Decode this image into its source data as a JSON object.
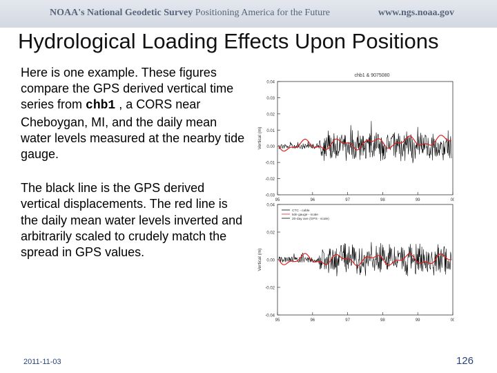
{
  "header": {
    "agency": "NOAA's National Geodetic Survey",
    "tagline": "Positioning America for the Future",
    "url": "www.ngs.noaa.gov"
  },
  "title": "Hydrological Loading Effects Upon Positions",
  "paragraph1": {
    "before": "Here is one example. These figures compare the GPS derived vertical time series from",
    "code": "chb1",
    "after": ", a CORS near Cheboygan, MI, and the daily mean water levels measured at the nearby tide gauge."
  },
  "paragraph2": "The black line is the GPS derived vertical displacements. The red line is the daily mean water levels inverted and arbitrarily scaled to crudely match the spread in GPS values.",
  "footer": {
    "date": "2011-11-03",
    "page": "126"
  },
  "chart_data": [
    {
      "type": "line",
      "title": "chb1 & 9075080",
      "ylabel": "Vertical (m)",
      "ylim": [
        -0.03,
        0.04
      ],
      "y_ticks": [
        "0.04",
        "0.03",
        "0.02",
        "0.01",
        "0.00",
        "-0.01",
        "-0.02",
        "-0.03"
      ],
      "x_ticks": [
        "95",
        "96",
        "97",
        "98",
        "99",
        "00"
      ],
      "series": [
        {
          "color": "#000000",
          "description": "GPS derived vertical displacements"
        },
        {
          "color": "#e0201f",
          "description": "daily mean water levels inverted and scaled"
        }
      ]
    },
    {
      "type": "line",
      "title": "",
      "ylabel": "Vertical (m)",
      "ylim": [
        -0.04,
        0.04
      ],
      "y_ticks": [
        "0.04",
        "0.02",
        "0.00",
        "-0.02",
        "-0.04"
      ],
      "x_ticks": [
        "95",
        "96",
        "97",
        "98",
        "99",
        "00"
      ],
      "legend": [
        "CTC - cable",
        "tide gauge - scale",
        "20-day ave (GPS - scale)"
      ],
      "legend_position": "top-left",
      "series": [
        {
          "color": "#000000",
          "description": "GPS derived vertical displacements"
        },
        {
          "color": "#e0201f",
          "description": "daily mean water levels inverted and scaled"
        }
      ]
    }
  ]
}
